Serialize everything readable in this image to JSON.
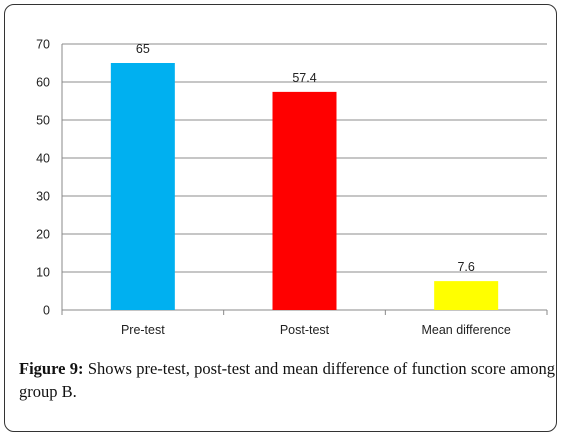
{
  "chart_data": {
    "type": "bar",
    "categories": [
      "Pre-test",
      "Post-test",
      "Mean difference"
    ],
    "values": [
      65,
      57.4,
      7.6
    ],
    "data_labels": [
      "65",
      "57.4",
      "7.6"
    ],
    "colors": [
      "#00b0f0",
      "#ff0000",
      "#ffff00"
    ],
    "ylim": [
      0,
      70
    ],
    "yticks": [
      0,
      10,
      20,
      30,
      40,
      50,
      60,
      70
    ],
    "grid": true,
    "title": "",
    "xlabel": "",
    "ylabel": ""
  },
  "caption": {
    "label": "Figure 9:",
    "text": " Shows pre-test, post-test and mean difference of function score among group B."
  }
}
